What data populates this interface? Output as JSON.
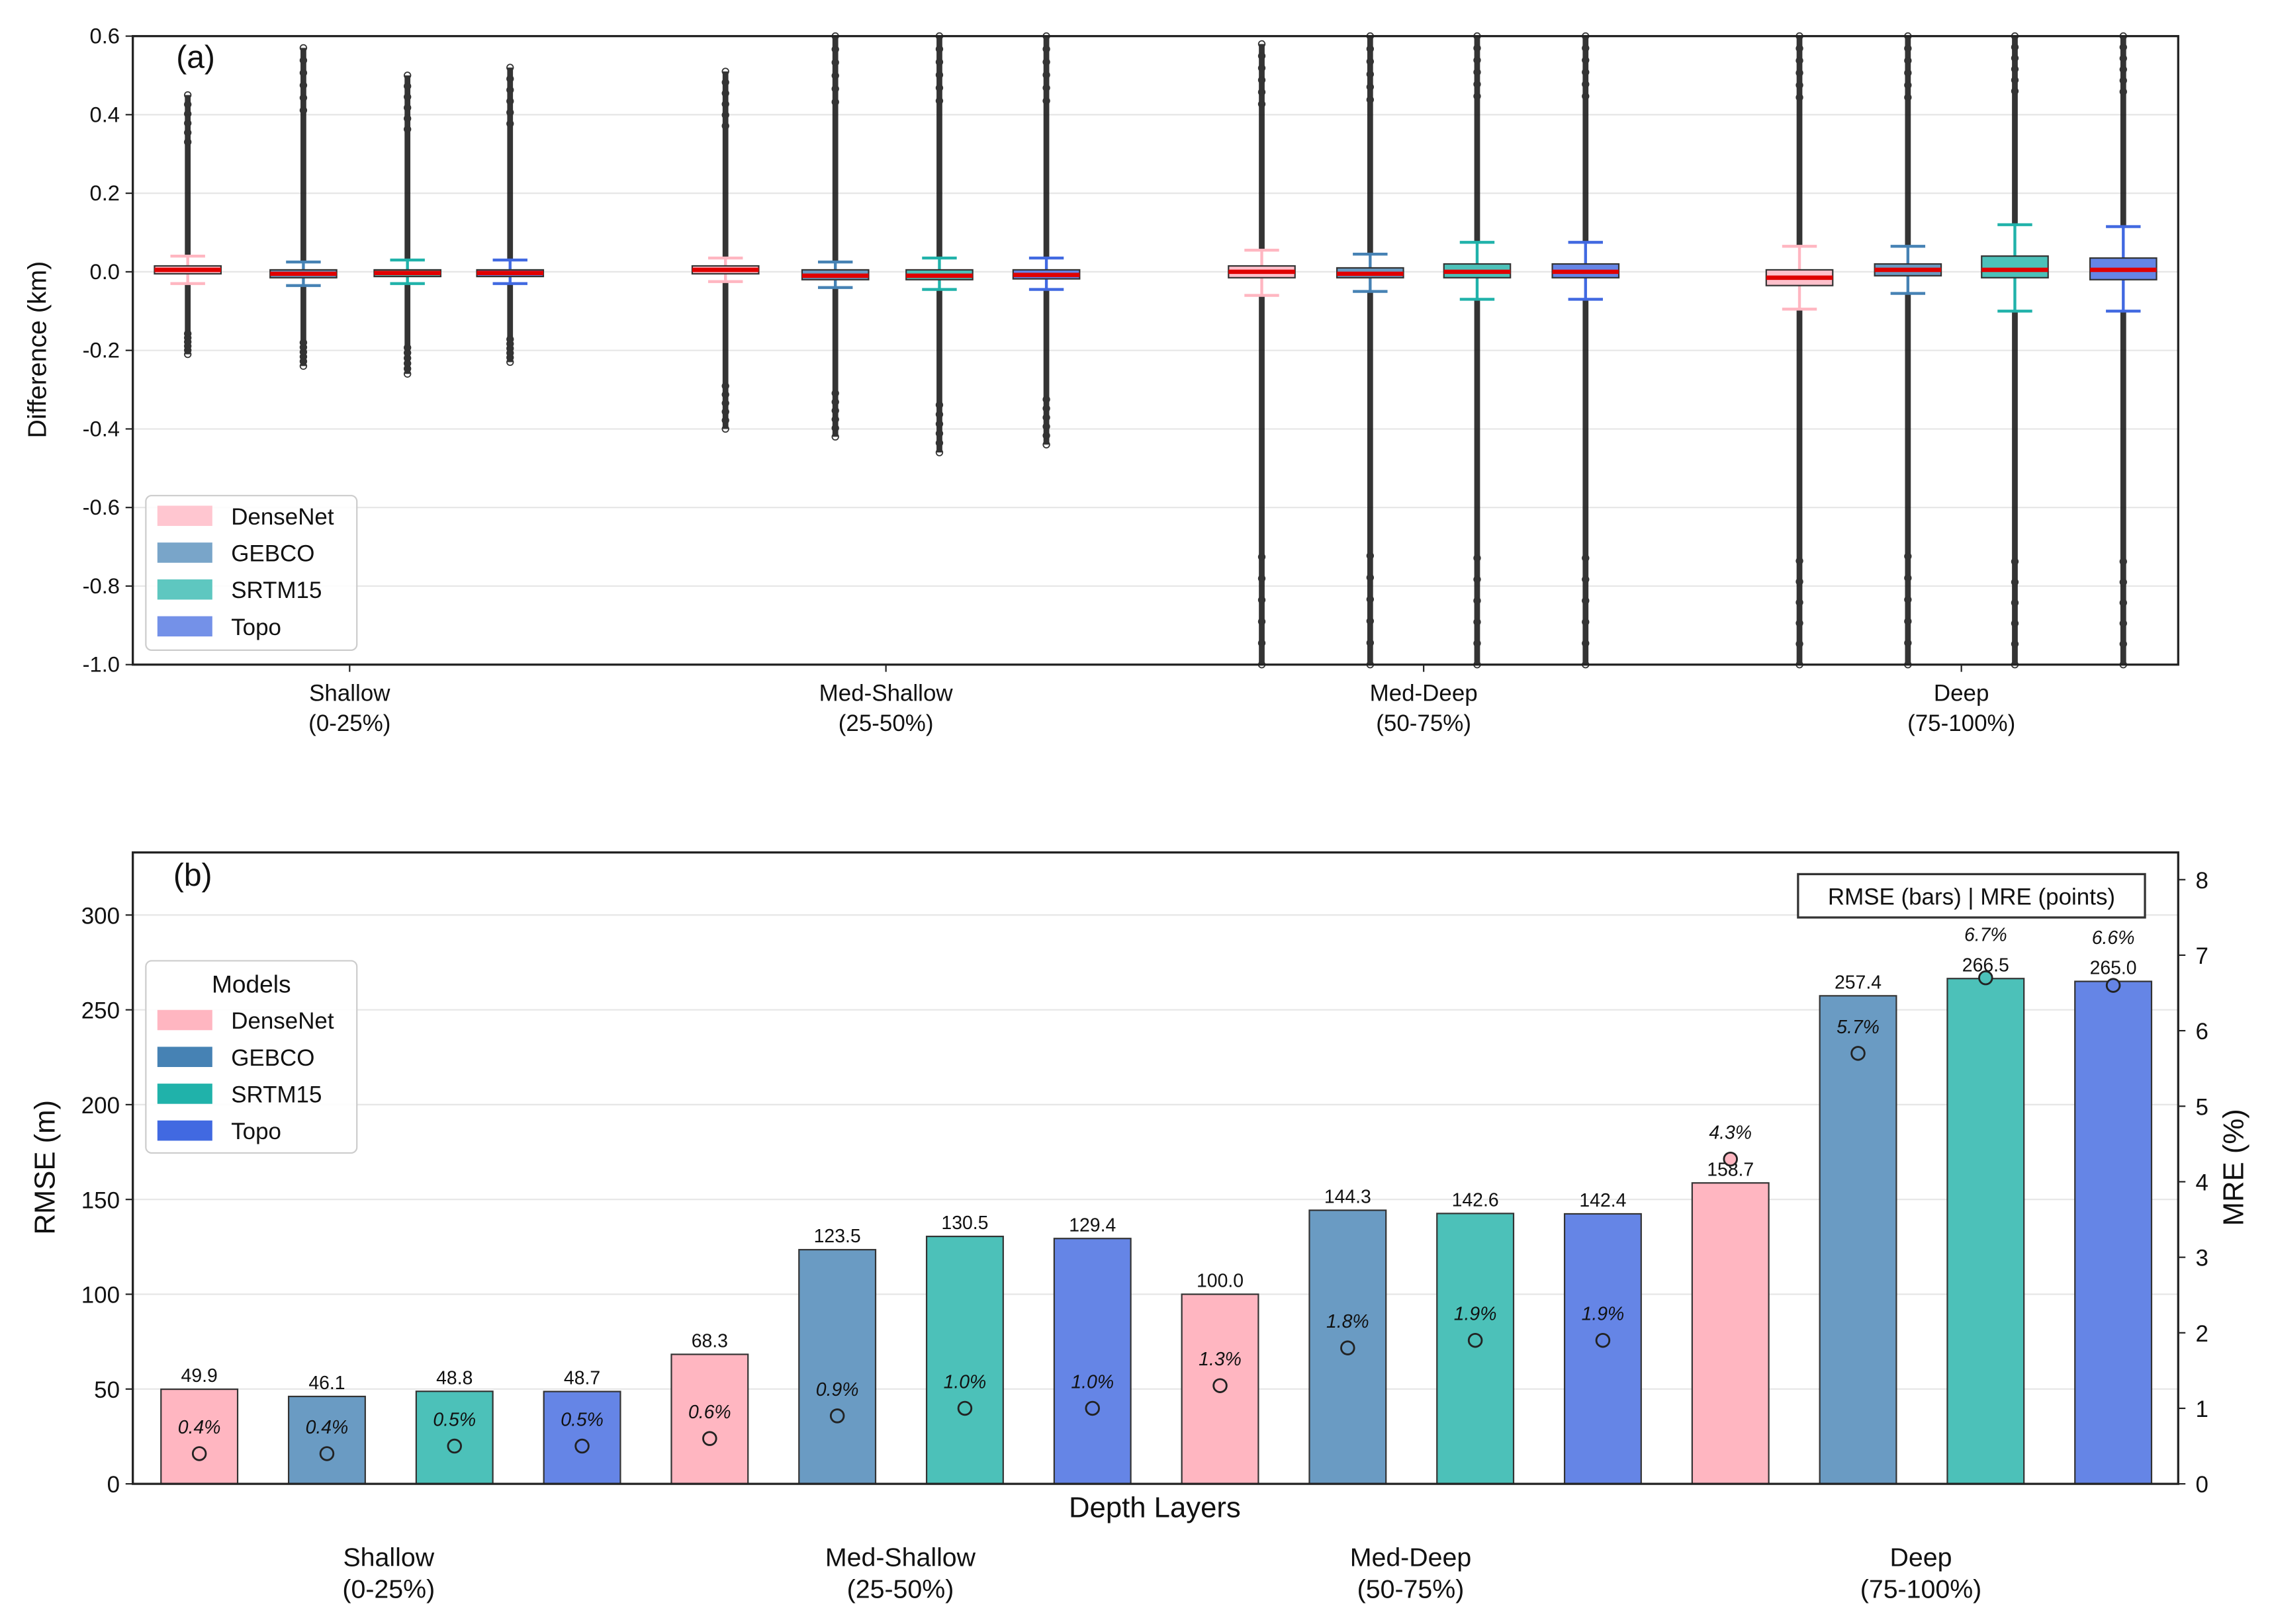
{
  "models": [
    {
      "name": "DenseNet",
      "color": "#ffb6c1",
      "box_color": "#ffc0cb"
    },
    {
      "name": "GEBCO",
      "color": "#6a9bc3",
      "box_color": "#6a9bc3"
    },
    {
      "name": "SRTM15",
      "color": "#4cc1b9",
      "box_color": "#4cc1b9"
    },
    {
      "name": "Topo",
      "color": "#6585e6",
      "box_color": "#6585e6"
    }
  ],
  "chart_data": [
    {
      "type": "boxplot",
      "panel_label": "(a)",
      "ylabel": "Difference (km)",
      "ylim": [
        -1.0,
        0.6
      ],
      "yticks": [
        "0.6",
        "0.4",
        "0.2",
        "0.0",
        "-0.2",
        "-0.4",
        "-0.6",
        "-0.8",
        "-1.0"
      ],
      "ytick_values": [
        0.6,
        0.4,
        0.2,
        0.0,
        -0.2,
        -0.4,
        -0.6,
        -0.8,
        -1.0
      ],
      "grid": true,
      "legend": {
        "placement": "lower-left",
        "entries": [
          "DenseNet",
          "GEBCO",
          "SRTM15",
          "Topo"
        ]
      },
      "categories": [
        {
          "line1": "Shallow",
          "line2": "(0-25%)"
        },
        {
          "line1": "Med-Shallow",
          "line2": "(25-50%)"
        },
        {
          "line1": "Med-Deep",
          "line2": "(50-75%)"
        },
        {
          "line1": "Deep",
          "line2": "(75-100%)"
        }
      ],
      "series": [
        {
          "name": "DenseNet",
          "boxes": [
            {
              "median": 0.005,
              "q1": -0.005,
              "q3": 0.015,
              "whislo": -0.03,
              "whishi": 0.04,
              "fliers": [
                -0.21,
                0.45
              ]
            },
            {
              "median": 0.005,
              "q1": -0.005,
              "q3": 0.015,
              "whislo": -0.025,
              "whishi": 0.035,
              "fliers": [
                -0.4,
                0.51
              ]
            },
            {
              "median": 0.0,
              "q1": -0.015,
              "q3": 0.015,
              "whislo": -0.06,
              "whishi": 0.055,
              "fliers": [
                -1.0,
                0.58
              ]
            },
            {
              "median": -0.015,
              "q1": -0.035,
              "q3": 0.005,
              "whislo": -0.095,
              "whishi": 0.065,
              "fliers": [
                -1.0,
                0.6
              ]
            }
          ]
        },
        {
          "name": "GEBCO",
          "boxes": [
            {
              "median": -0.005,
              "q1": -0.015,
              "q3": 0.005,
              "whislo": -0.035,
              "whishi": 0.025,
              "fliers": [
                -0.24,
                0.57
              ]
            },
            {
              "median": -0.01,
              "q1": -0.02,
              "q3": 0.005,
              "whislo": -0.04,
              "whishi": 0.025,
              "fliers": [
                -0.42,
                0.6
              ]
            },
            {
              "median": -0.005,
              "q1": -0.015,
              "q3": 0.01,
              "whislo": -0.05,
              "whishi": 0.045,
              "fliers": [
                -1.0,
                0.6
              ]
            },
            {
              "median": 0.005,
              "q1": -0.01,
              "q3": 0.02,
              "whislo": -0.055,
              "whishi": 0.065,
              "fliers": [
                -1.0,
                0.6
              ]
            }
          ]
        },
        {
          "name": "SRTM15",
          "boxes": [
            {
              "median": -0.003,
              "q1": -0.012,
              "q3": 0.005,
              "whislo": -0.03,
              "whishi": 0.03,
              "fliers": [
                -0.26,
                0.5
              ]
            },
            {
              "median": -0.01,
              "q1": -0.02,
              "q3": 0.005,
              "whislo": -0.045,
              "whishi": 0.035,
              "fliers": [
                -0.46,
                0.6
              ]
            },
            {
              "median": 0.0,
              "q1": -0.015,
              "q3": 0.02,
              "whislo": -0.07,
              "whishi": 0.075,
              "fliers": [
                -1.0,
                0.6
              ]
            },
            {
              "median": 0.005,
              "q1": -0.015,
              "q3": 0.04,
              "whislo": -0.1,
              "whishi": 0.12,
              "fliers": [
                -1.0,
                0.6
              ]
            }
          ]
        },
        {
          "name": "Topo",
          "boxes": [
            {
              "median": -0.003,
              "q1": -0.012,
              "q3": 0.005,
              "whislo": -0.03,
              "whishi": 0.03,
              "fliers": [
                -0.23,
                0.52
              ]
            },
            {
              "median": -0.008,
              "q1": -0.018,
              "q3": 0.005,
              "whislo": -0.045,
              "whishi": 0.035,
              "fliers": [
                -0.44,
                0.6
              ]
            },
            {
              "median": 0.0,
              "q1": -0.015,
              "q3": 0.02,
              "whislo": -0.07,
              "whishi": 0.075,
              "fliers": [
                -1.0,
                0.6
              ]
            },
            {
              "median": 0.005,
              "q1": -0.02,
              "q3": 0.035,
              "whislo": -0.1,
              "whishi": 0.115,
              "fliers": [
                -1.0,
                0.6
              ]
            }
          ]
        }
      ]
    },
    {
      "type": "bar",
      "panel_label": "(b)",
      "xlabel": "Depth Layers",
      "ylabel": "RMSE (m)",
      "y2label": "MRE (%)",
      "ylim": [
        0,
        333
      ],
      "y2lim": [
        0,
        8.36
      ],
      "yticks": [
        "0",
        "50",
        "100",
        "150",
        "200",
        "250",
        "300"
      ],
      "ytick_values": [
        0,
        50,
        100,
        150,
        200,
        250,
        300
      ],
      "y2ticks": [
        "0",
        "1",
        "2",
        "3",
        "4",
        "5",
        "6",
        "7",
        "8"
      ],
      "y2tick_values": [
        0,
        1,
        2,
        3,
        4,
        5,
        6,
        7,
        8
      ],
      "grid": true,
      "annotation": "RMSE (bars) | MRE (points)",
      "legend": {
        "title": "Models",
        "placement": "upper-left",
        "entries": [
          "DenseNet",
          "GEBCO",
          "SRTM15",
          "Topo"
        ]
      },
      "categories": [
        {
          "line1": "Shallow",
          "line2": "(0-25%)"
        },
        {
          "line1": "Med-Shallow",
          "line2": "(25-50%)"
        },
        {
          "line1": "Med-Deep",
          "line2": "(50-75%)"
        },
        {
          "line1": "Deep",
          "line2": "(75-100%)"
        }
      ],
      "series": [
        {
          "name": "DenseNet",
          "rmse": [
            49.9,
            68.3,
            100.0,
            158.7
          ],
          "rmse_labels": [
            "49.9",
            "68.3",
            "100.0",
            "158.7"
          ],
          "mre": [
            0.4,
            0.6,
            1.3,
            4.3
          ],
          "mre_labels": [
            "0.4%",
            "0.6%",
            "1.3%",
            "4.3%"
          ]
        },
        {
          "name": "GEBCO",
          "rmse": [
            46.1,
            123.5,
            144.3,
            257.4
          ],
          "rmse_labels": [
            "46.1",
            "123.5",
            "144.3",
            "257.4"
          ],
          "mre": [
            0.4,
            0.9,
            1.8,
            5.7
          ],
          "mre_labels": [
            "0.4%",
            "0.9%",
            "1.8%",
            "5.7%"
          ]
        },
        {
          "name": "SRTM15",
          "rmse": [
            48.8,
            130.5,
            142.6,
            266.5
          ],
          "rmse_labels": [
            "48.8",
            "130.5",
            "142.6",
            "266.5"
          ],
          "mre": [
            0.5,
            1.0,
            1.9,
            6.7
          ],
          "mre_labels": [
            "0.5%",
            "1.0%",
            "1.9%",
            "6.7%"
          ]
        },
        {
          "name": "Topo",
          "rmse": [
            48.7,
            129.4,
            142.4,
            265.0
          ],
          "rmse_labels": [
            "48.7",
            "129.4",
            "142.4",
            "265.0"
          ],
          "mre": [
            0.5,
            1.0,
            1.9,
            6.6
          ],
          "mre_labels": [
            "0.5%",
            "1.0%",
            "1.9%",
            "6.6%"
          ]
        }
      ]
    }
  ]
}
